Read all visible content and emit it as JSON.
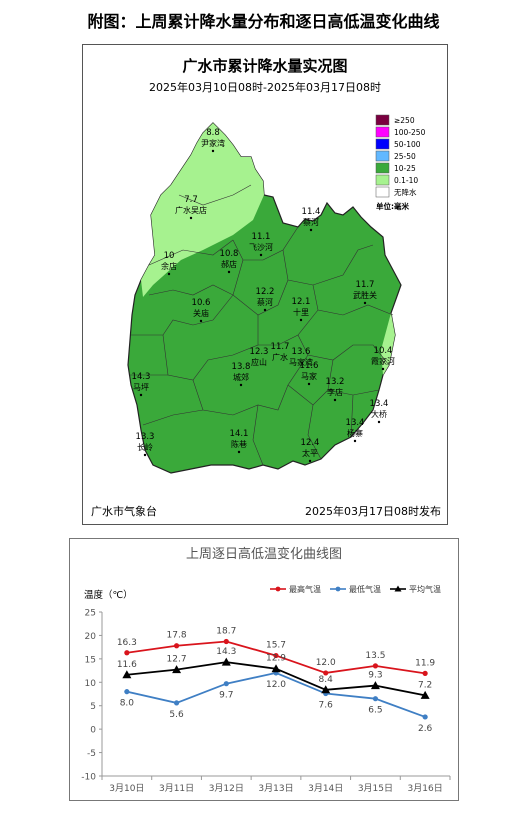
{
  "page": {
    "title": "附图：上周累计降水量分布和逐日高低温变化曲线"
  },
  "map": {
    "title": "广水市累计降水量实况图",
    "subtitle": "2025年03月10日08时-2025年03月17日08时",
    "agency": "广水市气象台",
    "publish": "2025年03月17日08时发布",
    "legend": {
      "items": [
        {
          "label": "≥250",
          "color": "#7a0040"
        },
        {
          "label": "100-250",
          "color": "#ff00ff"
        },
        {
          "label": "50-100",
          "color": "#0000fe"
        },
        {
          "label": "25-50",
          "color": "#62b8ff"
        },
        {
          "label": "10-25",
          "color": "#3aa93a"
        },
        {
          "label": "0.1-10",
          "color": "#a6f28f"
        },
        {
          "label": "无降水",
          "color": "#ffffff"
        }
      ],
      "unit": "单位:毫米"
    },
    "stations": [
      {
        "value": "8.8",
        "name": "尹家湾"
      },
      {
        "value": "7.7",
        "name": "广水吴店"
      },
      {
        "value": "10",
        "name": "余店"
      },
      {
        "value": "10.8",
        "name": "郝店"
      },
      {
        "value": "11.1",
        "name": "飞沙河"
      },
      {
        "value": "11.4",
        "name": "蔡河"
      },
      {
        "value": "11.7",
        "name": "武胜关"
      },
      {
        "value": "10.6",
        "name": "关庙"
      },
      {
        "value": "12.2",
        "name": "蔡河"
      },
      {
        "value": "12.1",
        "name": "十里"
      },
      {
        "value": "10.4",
        "name": "霞家河"
      },
      {
        "value": "12.3",
        "name": "应山"
      },
      {
        "value": "11.7",
        "name": "广水"
      },
      {
        "value": "13.6",
        "name": "马家湾"
      },
      {
        "value": "11.6",
        "name": "马家"
      },
      {
        "value": "14.3",
        "name": "马坪"
      },
      {
        "value": "13.8",
        "name": "城郊"
      },
      {
        "value": "13.2",
        "name": "李店"
      },
      {
        "value": "13.4",
        "name": "大桥"
      },
      {
        "value": "13.4",
        "name": "杨寨"
      },
      {
        "value": "13.3",
        "name": "长岭"
      },
      {
        "value": "14.1",
        "name": "陈巷"
      },
      {
        "value": "12.4",
        "name": "太平"
      }
    ]
  },
  "chart_data": {
    "type": "line",
    "title": "上周逐日高低温变化曲线图",
    "ylabel": "温度（℃）",
    "ylim": [
      -10,
      25
    ],
    "yticks": [
      -10,
      -5,
      0,
      5,
      10,
      15,
      20,
      25
    ],
    "categories": [
      "3月10日",
      "3月11日",
      "3月12日",
      "3月13日",
      "3月14日",
      "3月15日",
      "3月16日"
    ],
    "legend_position": "top-right",
    "series": [
      {
        "name": "最高气温",
        "color": "#d9141c",
        "marker": "circle",
        "values": [
          16.3,
          17.8,
          18.7,
          15.7,
          12.0,
          13.5,
          11.9
        ]
      },
      {
        "name": "最低气温",
        "color": "#3f7fc4",
        "marker": "circle",
        "values": [
          8.0,
          5.6,
          9.7,
          12.0,
          7.6,
          6.5,
          2.6
        ]
      },
      {
        "name": "平均气温",
        "color": "#000000",
        "marker": "triangle",
        "values": [
          11.6,
          12.7,
          14.3,
          12.9,
          8.4,
          9.3,
          7.2
        ]
      }
    ],
    "grid": false
  }
}
